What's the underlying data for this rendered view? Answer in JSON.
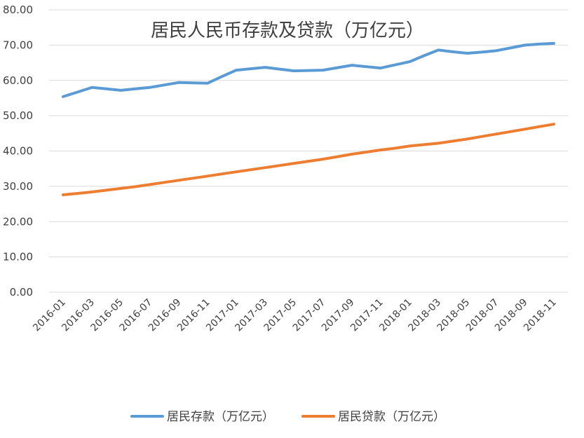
{
  "chart_data": {
    "type": "line",
    "title": "居民人民币存款及贷款（万亿元）",
    "xlabel": "",
    "ylabel": "",
    "ylim": [
      0,
      80
    ],
    "yticks": [
      "0.00",
      "10.00",
      "20.00",
      "30.00",
      "40.00",
      "50.00",
      "60.00",
      "70.00",
      "80.00"
    ],
    "grid": true,
    "legend_position": "bottom",
    "categories": [
      "2016-01",
      "2016-02",
      "2016-03",
      "2016-04",
      "2016-05",
      "2016-06",
      "2016-07",
      "2016-08",
      "2016-09",
      "2016-10",
      "2016-11",
      "2016-12",
      "2017-01",
      "2017-02",
      "2017-03",
      "2017-04",
      "2017-05",
      "2017-06",
      "2017-07",
      "2017-08",
      "2017-09",
      "2017-10",
      "2017-11",
      "2017-12",
      "2018-01",
      "2018-02",
      "2018-03",
      "2018-04",
      "2018-05",
      "2018-06",
      "2018-07",
      "2018-08",
      "2018-09",
      "2018-10",
      "2018-11"
    ],
    "xtick_labels": [
      "2016-01",
      "2016-03",
      "2016-05",
      "2016-07",
      "2016-09",
      "2016-11",
      "2017-01",
      "2017-03",
      "2017-05",
      "2017-07",
      "2017-09",
      "2017-11",
      "2018-01",
      "2018-03",
      "2018-05",
      "2018-07",
      "2018-09",
      "2018-11"
    ],
    "series": [
      {
        "name": "居民存款（万亿元）",
        "color": "#5b9bd5",
        "values": [
          55.4,
          56.7,
          58.0,
          57.6,
          57.2,
          57.6,
          58.0,
          58.7,
          59.4,
          59.3,
          59.2,
          61.1,
          62.9,
          63.3,
          63.7,
          63.2,
          62.7,
          62.8,
          62.9,
          63.6,
          64.3,
          63.9,
          63.5,
          64.4,
          65.3,
          67.0,
          68.6,
          68.1,
          67.7,
          68.0,
          68.4,
          69.2,
          70.0,
          70.3,
          70.5
        ]
      },
      {
        "name": "居民贷款（万亿元）",
        "color": "#ed7d31",
        "values": [
          27.6,
          28.0,
          28.4,
          28.9,
          29.4,
          29.9,
          30.5,
          31.1,
          31.7,
          32.3,
          32.9,
          33.5,
          34.1,
          34.7,
          35.3,
          35.9,
          36.5,
          37.1,
          37.7,
          38.4,
          39.1,
          39.7,
          40.3,
          40.8,
          41.4,
          41.8,
          42.2,
          42.8,
          43.4,
          44.1,
          44.8,
          45.5,
          46.2,
          46.9,
          47.6
        ]
      }
    ]
  }
}
